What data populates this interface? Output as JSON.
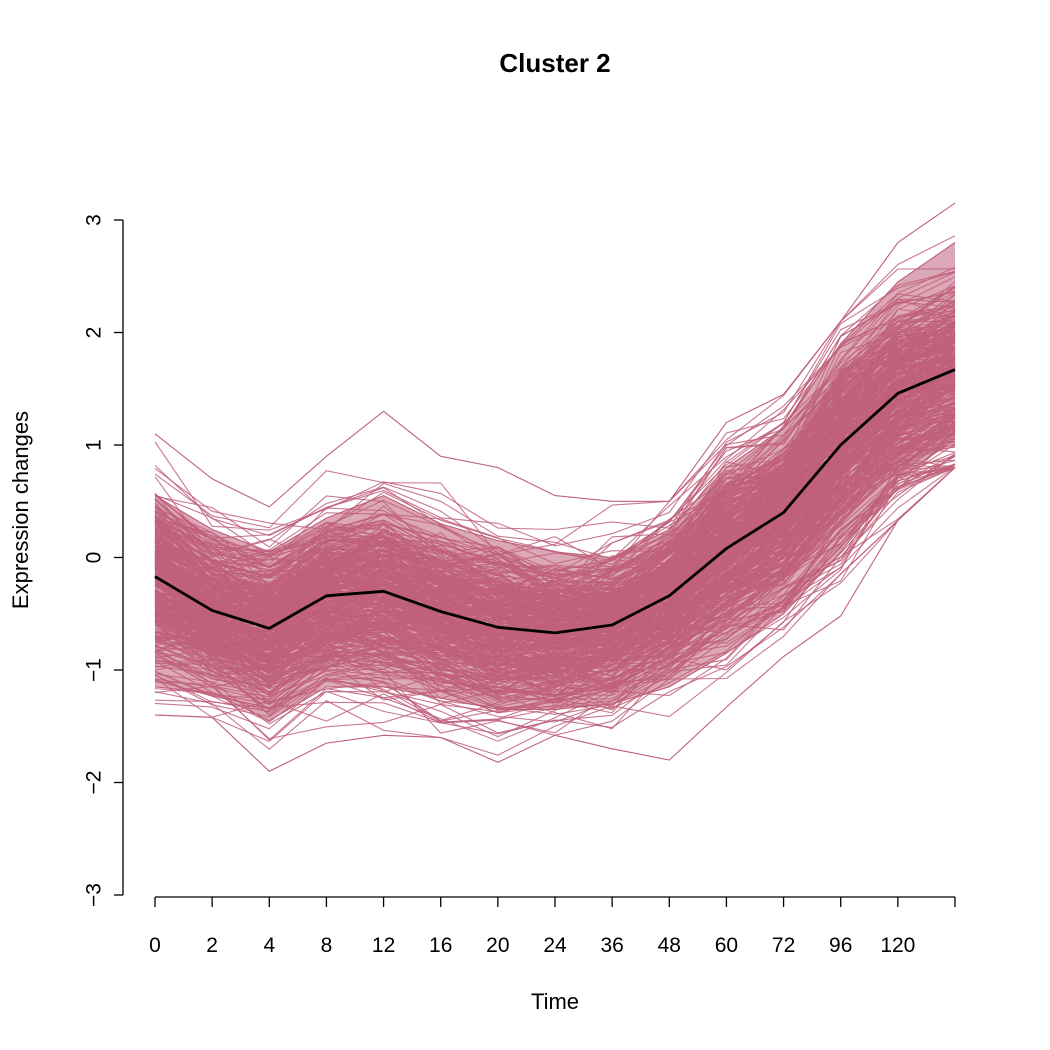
{
  "chart_data": {
    "type": "line",
    "title": "Cluster 2",
    "xlabel": "Time",
    "ylabel": "Expression changes",
    "categories": [
      "0",
      "2",
      "4",
      "8",
      "12",
      "16",
      "20",
      "24",
      "36",
      "48",
      "60",
      "72",
      "96",
      "120",
      ""
    ],
    "ylim": [
      -3,
      3
    ],
    "yticks": [
      -3,
      -2,
      -1,
      0,
      1,
      2,
      3
    ],
    "ytick_labels": [
      "−3",
      "−2",
      "−1",
      "0",
      "1",
      "2",
      "3"
    ],
    "grid": false,
    "series": [
      {
        "role": "mean",
        "values": [
          -0.17,
          -0.47,
          -0.63,
          -0.34,
          -0.3,
          -0.48,
          -0.62,
          -0.67,
          -0.6,
          -0.34,
          0.08,
          0.4,
          1.0,
          1.46,
          1.67
        ]
      },
      {
        "role": "band-upper-extreme",
        "values": [
          1.1,
          0.7,
          0.45,
          0.9,
          1.3,
          0.9,
          0.8,
          0.55,
          0.5,
          0.5,
          1.2,
          1.45,
          2.1,
          2.8,
          3.15
        ]
      },
      {
        "role": "band-lower-extreme",
        "values": [
          -1.4,
          -1.42,
          -1.9,
          -1.65,
          -1.58,
          -1.6,
          -1.82,
          -1.58,
          -1.7,
          -1.8,
          -1.33,
          -0.88,
          -0.52,
          0.33,
          0.8
        ]
      },
      {
        "role": "band-upper-dense",
        "values": [
          0.55,
          0.25,
          0.05,
          0.35,
          0.55,
          0.3,
          0.15,
          0.05,
          0.0,
          0.25,
          0.8,
          1.15,
          1.9,
          2.45,
          2.8
        ]
      },
      {
        "role": "band-lower-dense",
        "values": [
          -1.15,
          -1.2,
          -1.45,
          -1.15,
          -1.15,
          -1.25,
          -1.35,
          -1.35,
          -1.3,
          -1.15,
          -0.85,
          -0.5,
          0.05,
          0.7,
          1.05
        ]
      }
    ],
    "colors": {
      "profiles": "#c0607b",
      "mean": "#000000"
    }
  }
}
